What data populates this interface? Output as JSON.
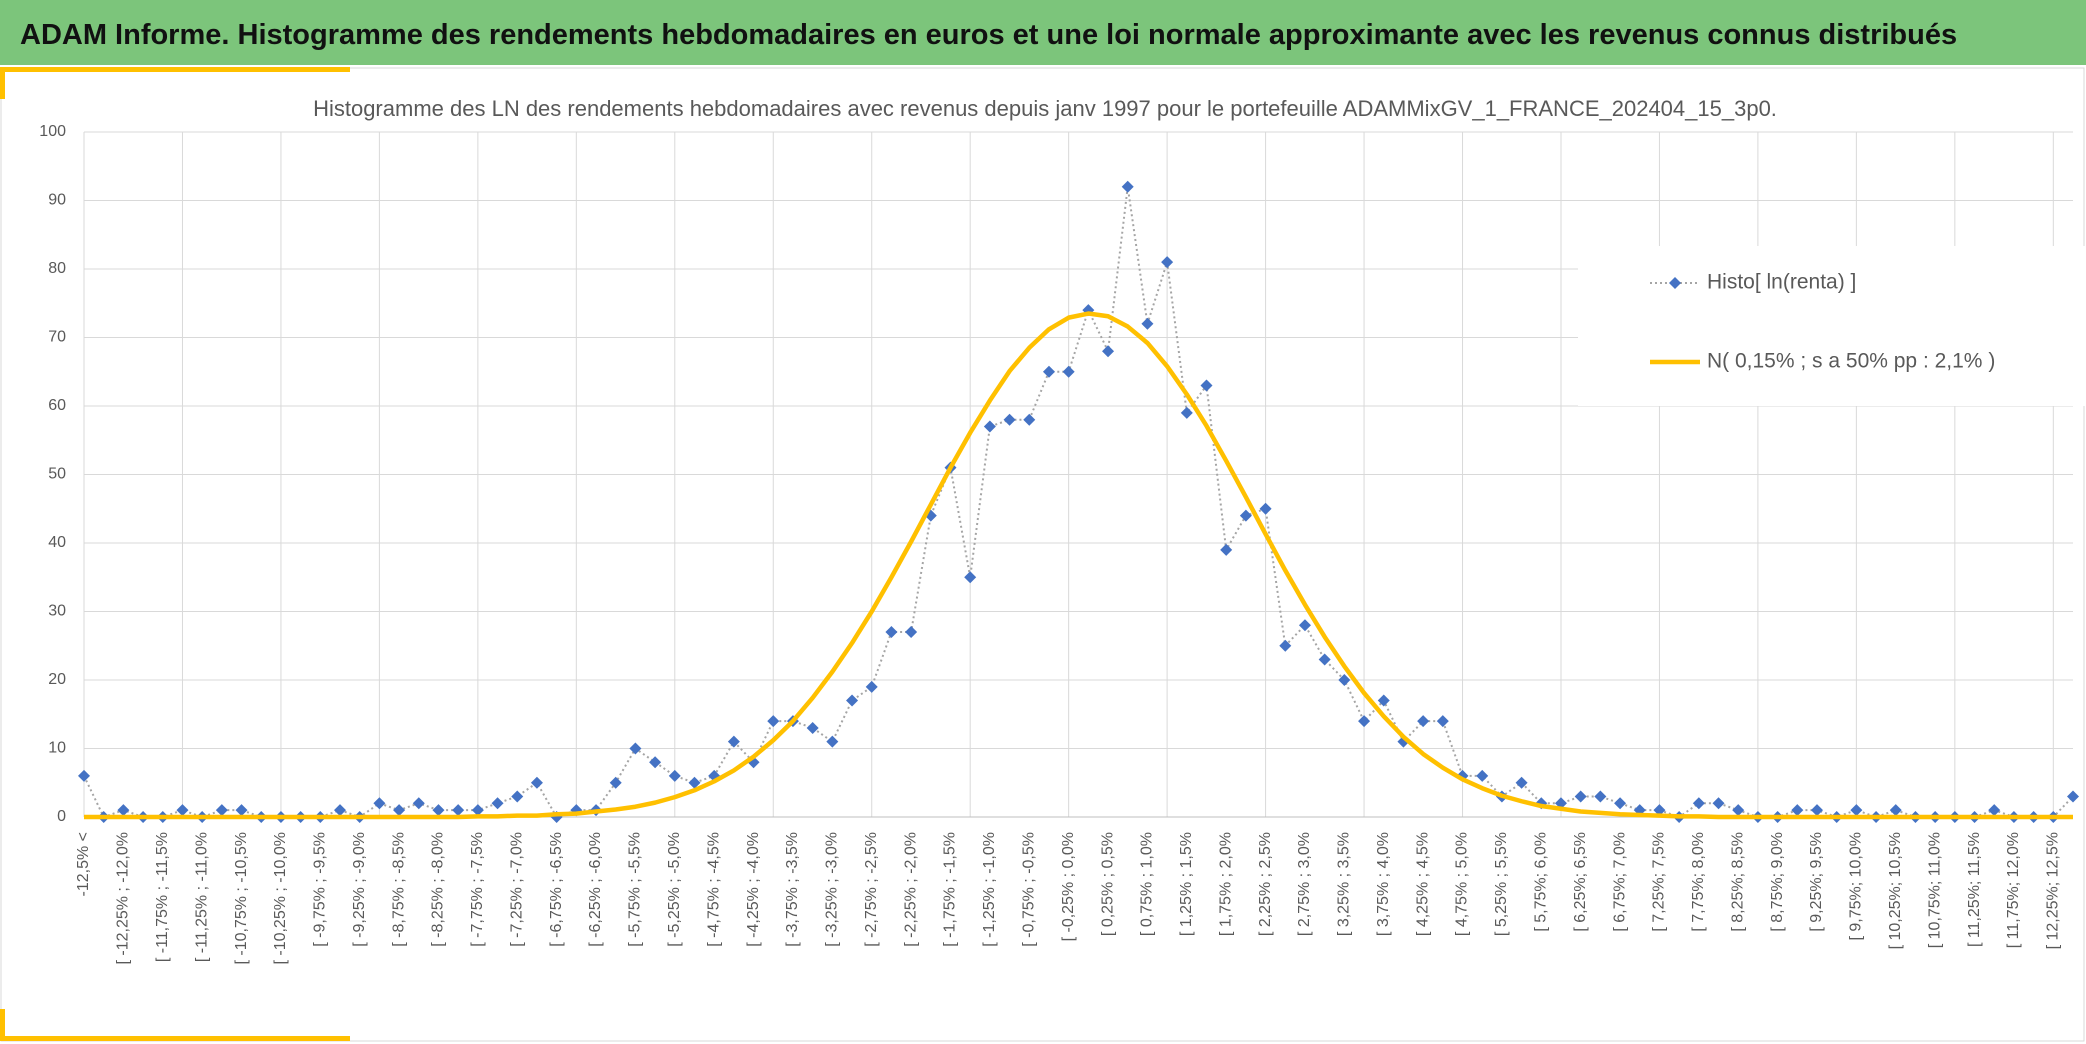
{
  "header": {
    "title": "ADAM Informe. Histogramme des rendements hebdomadaires en euros et une loi normale approximante avec les revenus connus distribués"
  },
  "chart_data": {
    "type": "line",
    "title": "Histogramme des LN des rendements hebdomadaires avec revenus depuis janv 1997 pour le portefeuille ADAMMixGV_1_FRANCE_202404_15_3p0.",
    "categories": [
      "-12,5% <",
      null,
      "[ -12,25% ; -12,0%",
      null,
      "[ -11,75% ; -11,5%",
      null,
      "[ -11,25% ; -11,0%",
      null,
      "[ -10,75% ; -10,5%",
      null,
      "[ -10,25% ; -10,0%",
      null,
      "[ -9,75% ; -9,5%",
      null,
      "[ -9,25% ; -9,0%",
      null,
      "[ -8,75% ; -8,5%",
      null,
      "[ -8,25% ; -8,0%",
      null,
      "[ -7,75% ; -7,5%",
      null,
      "[ -7,25% ; -7,0%",
      null,
      "[ -6,75% ; -6,5%",
      null,
      "[ -6,25% ; -6,0%",
      null,
      "[ -5,75% ; -5,5%",
      null,
      "[ -5,25% ; -5,0%",
      null,
      "[ -4,75% ; -4,5%",
      null,
      "[ -4,25% ; -4,0%",
      null,
      "[ -3,75% ; -3,5%",
      null,
      "[ -3,25% ; -3,0%",
      null,
      "[ -2,75% ; -2,5%",
      null,
      "[ -2,25% ; -2,0%",
      null,
      "[ -1,75% ; -1,5%",
      null,
      "[ -1,25% ; -1,0%",
      null,
      "[ -0,75% ; -0,5%",
      null,
      "[ -0,25% ; 0,0%",
      null,
      "[ 0,25% ; 0,5%",
      null,
      "[ 0,75% ; 1,0%",
      null,
      "[ 1,25% ; 1,5%",
      null,
      "[ 1,75% ; 2,0%",
      null,
      "[ 2,25% ; 2,5%",
      null,
      "[ 2,75% ; 3,0%",
      null,
      "[ 3,25% ; 3,5%",
      null,
      "[ 3,75% ; 4,0%",
      null,
      "[ 4,25% ; 4,5%",
      null,
      "[ 4,75% ; 5,0%",
      null,
      "[ 5,25% ; 5,5%",
      null,
      "[ 5,75%; 6,0%",
      null,
      "[ 6,25%; 6,5%",
      null,
      "[ 6,75%; 7,0%",
      null,
      "[ 7,25%; 7,5%",
      null,
      "[ 7,75%; 8,0%",
      null,
      "[ 8,25%; 8,5%",
      null,
      "[ 8,75%; 9,0%",
      null,
      "[ 9,25%; 9,5%",
      null,
      "[ 9,75%; 10,0%",
      null,
      "[ 10,25%; 10,5%",
      null,
      "[ 10,75%; 11,0%",
      null,
      "[ 11,25%; 11,5%",
      null,
      "[ 11,75%; 12,0%",
      null,
      "[ 12,25%; 12,5%",
      null
    ],
    "series": [
      {
        "name": "Histo[ ln(renta) ]",
        "color": "#4472c4",
        "line_color": "#a5a5a5",
        "line_style": "dotted",
        "marker": "diamond",
        "values": [
          6,
          0,
          1,
          0,
          0,
          1,
          0,
          1,
          1,
          0,
          0,
          0,
          0,
          1,
          0,
          2,
          1,
          2,
          1,
          1,
          1,
          2,
          3,
          5,
          0,
          1,
          1,
          5,
          10,
          8,
          6,
          5,
          6,
          11,
          8,
          14,
          14,
          13,
          11,
          17,
          19,
          27,
          27,
          44,
          51,
          35,
          57,
          58,
          58,
          65,
          65,
          74,
          68,
          92,
          72,
          81,
          59,
          63,
          39,
          44,
          45,
          25,
          28,
          23,
          20,
          14,
          17,
          11,
          14,
          14,
          6,
          6,
          3,
          5,
          2,
          2,
          3,
          3,
          2,
          1,
          1,
          0,
          2,
          2,
          1,
          0,
          0,
          1,
          1,
          0,
          1,
          0,
          1,
          0,
          0,
          0,
          0,
          1,
          0,
          0,
          0,
          3
        ]
      },
      {
        "name": "N( 0,15% ; s a 50% pp : 2,1% )",
        "color": "#ffc000",
        "line_style": "solid",
        "marker": "none",
        "values": [
          0,
          0,
          0,
          0,
          0,
          0,
          0,
          0,
          0,
          0,
          0,
          0,
          0,
          0,
          0,
          0,
          0,
          0,
          0,
          0,
          0.1,
          0.1,
          0.2,
          0.2,
          0.4,
          0.5,
          0.8,
          1.1,
          1.5,
          2.1,
          2.9,
          3.9,
          5.2,
          6.8,
          8.8,
          11.2,
          14.0,
          17.4,
          21.2,
          25.4,
          30.0,
          35.0,
          40.2,
          45.6,
          51.0,
          56.1,
          60.8,
          65.1,
          68.5,
          71.2,
          72.9,
          73.5,
          73.1,
          71.6,
          69.2,
          65.8,
          61.7,
          57.1,
          52.0,
          46.7,
          41.3,
          36.0,
          31.0,
          26.3,
          22.0,
          18.1,
          14.7,
          11.7,
          9.2,
          7.2,
          5.5,
          4.2,
          3.1,
          2.3,
          1.6,
          1.2,
          0.8,
          0.6,
          0.4,
          0.3,
          0.2,
          0.1,
          0.1,
          0,
          0,
          0,
          0,
          0,
          0,
          0,
          0,
          0,
          0,
          0,
          0,
          0,
          0,
          0,
          0,
          0,
          0,
          0
        ]
      }
    ],
    "ylim": [
      0,
      100
    ],
    "yticks": [
      0,
      10,
      20,
      30,
      40,
      50,
      60,
      70,
      80,
      90,
      100
    ],
    "grid": true,
    "legend": "right"
  }
}
